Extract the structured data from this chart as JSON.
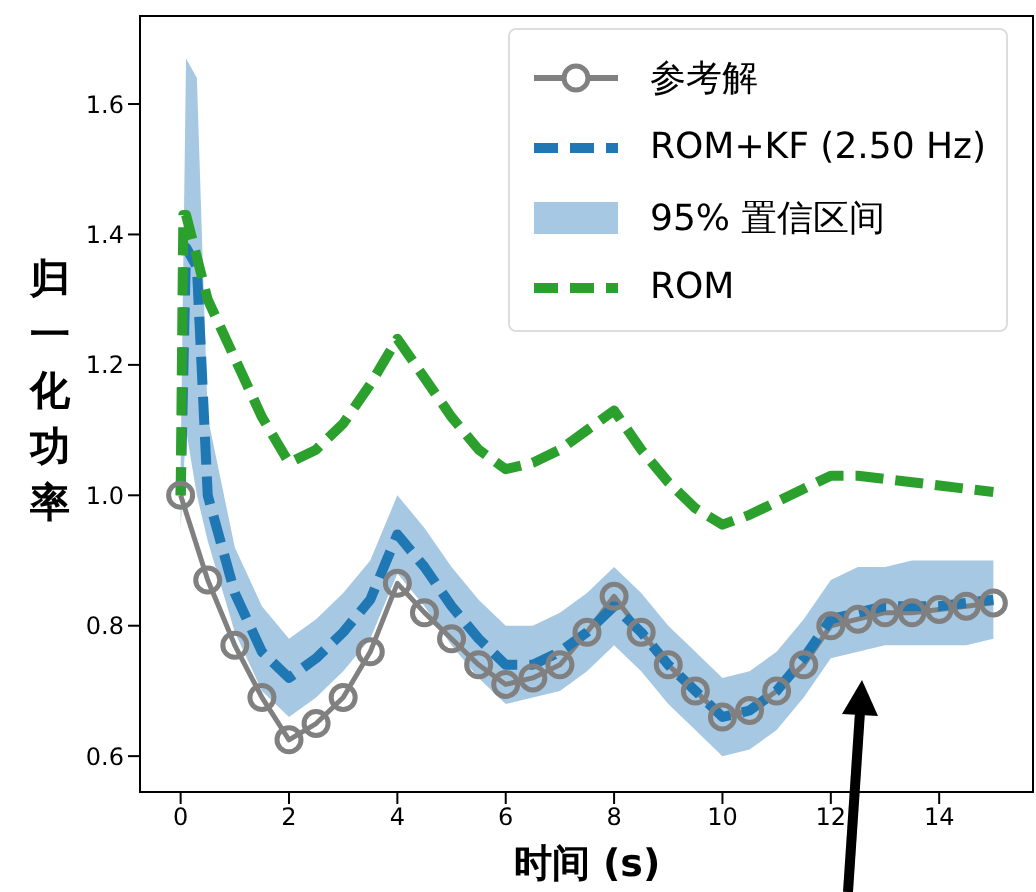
{
  "chart_data": {
    "type": "line",
    "xlabel": "时间 (s)",
    "ylabel": "归一化功率",
    "xlim": [
      -0.75,
      15.75
    ],
    "ylim": [
      0.545,
      1.735
    ],
    "xticks": [
      0,
      2,
      4,
      6,
      8,
      10,
      12,
      14
    ],
    "yticks": [
      {
        "value": 0.6,
        "label": "0.6"
      },
      {
        "value": 0.8,
        "label": "0.8"
      },
      {
        "value": 1,
        "label": "1.0"
      },
      {
        "value": 1.2,
        "label": "1.2"
      },
      {
        "value": 1.4,
        "label": "1.4"
      },
      {
        "value": 1.6,
        "label": "1.6"
      }
    ],
    "legend": "top right",
    "grid": false,
    "annotations": [
      "95% 置信区间"
    ],
    "series": [
      {
        "name": "参考解",
        "color": "#808080",
        "marker": "circle",
        "line_style": "solid",
        "x": [
          0,
          0.5,
          1,
          1.5,
          2,
          2.5,
          3,
          3.5,
          4,
          4.5,
          5,
          5.5,
          6,
          6.5,
          7,
          7.5,
          8,
          8.5,
          9,
          9.5,
          10,
          10.5,
          11,
          11.5,
          12,
          12.5,
          13,
          13.5,
          14,
          14.5,
          15
        ],
        "values": [
          1.0,
          0.87,
          0.77,
          0.69,
          0.625,
          0.65,
          0.69,
          0.76,
          0.865,
          0.82,
          0.78,
          0.74,
          0.71,
          0.72,
          0.74,
          0.79,
          0.845,
          0.79,
          0.74,
          0.7,
          0.66,
          0.67,
          0.7,
          0.74,
          0.8,
          0.81,
          0.82,
          0.82,
          0.825,
          0.83,
          0.835
        ]
      },
      {
        "name": "ROM+KF (2.50 Hz)",
        "color": "#1f77b4",
        "marker": "none",
        "line_style": "dashed",
        "x": [
          0,
          0.1,
          0.3,
          0.5,
          1,
          1.5,
          2,
          2.5,
          3,
          3.5,
          4,
          4.5,
          5,
          5.5,
          6,
          6.5,
          7,
          7.5,
          8,
          8.5,
          9,
          9.5,
          10,
          10.5,
          11,
          11.5,
          12,
          12.5,
          13,
          13.5,
          14,
          14.5,
          15
        ],
        "values": [
          1.0,
          1.38,
          1.35,
          1.0,
          0.85,
          0.76,
          0.72,
          0.75,
          0.79,
          0.84,
          0.94,
          0.89,
          0.83,
          0.78,
          0.74,
          0.74,
          0.76,
          0.79,
          0.83,
          0.79,
          0.74,
          0.7,
          0.66,
          0.67,
          0.7,
          0.75,
          0.81,
          0.82,
          0.83,
          0.83,
          0.83,
          0.835,
          0.84
        ],
        "lower": [
          0.95,
          1.1,
          1.0,
          0.93,
          0.79,
          0.7,
          0.66,
          0.69,
          0.73,
          0.78,
          0.88,
          0.83,
          0.77,
          0.72,
          0.68,
          0.69,
          0.7,
          0.73,
          0.77,
          0.73,
          0.68,
          0.64,
          0.6,
          0.61,
          0.64,
          0.69,
          0.75,
          0.76,
          0.77,
          0.77,
          0.77,
          0.77,
          0.78
        ],
        "upper": [
          1.05,
          1.67,
          1.64,
          1.12,
          0.92,
          0.83,
          0.78,
          0.81,
          0.85,
          0.9,
          1.0,
          0.95,
          0.89,
          0.84,
          0.8,
          0.8,
          0.82,
          0.85,
          0.89,
          0.85,
          0.8,
          0.76,
          0.72,
          0.73,
          0.76,
          0.81,
          0.87,
          0.89,
          0.89,
          0.9,
          0.9,
          0.9,
          0.9
        ]
      },
      {
        "name": "ROM",
        "color": "#2ca02c",
        "marker": "none",
        "line_style": "dashed",
        "x": [
          0,
          0.05,
          0.1,
          0.5,
          1,
          1.5,
          2,
          2.5,
          3,
          3.5,
          4,
          4.5,
          5,
          5.5,
          6,
          6.5,
          7,
          7.5,
          8,
          8.5,
          9,
          9.5,
          10,
          10.5,
          11,
          11.5,
          12,
          12.5,
          13,
          13.5,
          14,
          14.5,
          15
        ],
        "values": [
          1.0,
          1.43,
          1.43,
          1.3,
          1.21,
          1.12,
          1.05,
          1.07,
          1.11,
          1.17,
          1.24,
          1.18,
          1.12,
          1.07,
          1.04,
          1.05,
          1.07,
          1.1,
          1.13,
          1.07,
          1.02,
          0.98,
          0.955,
          0.97,
          0.99,
          1.01,
          1.03,
          1.03,
          1.025,
          1.02,
          1.015,
          1.01,
          1.005
        ]
      }
    ]
  }
}
